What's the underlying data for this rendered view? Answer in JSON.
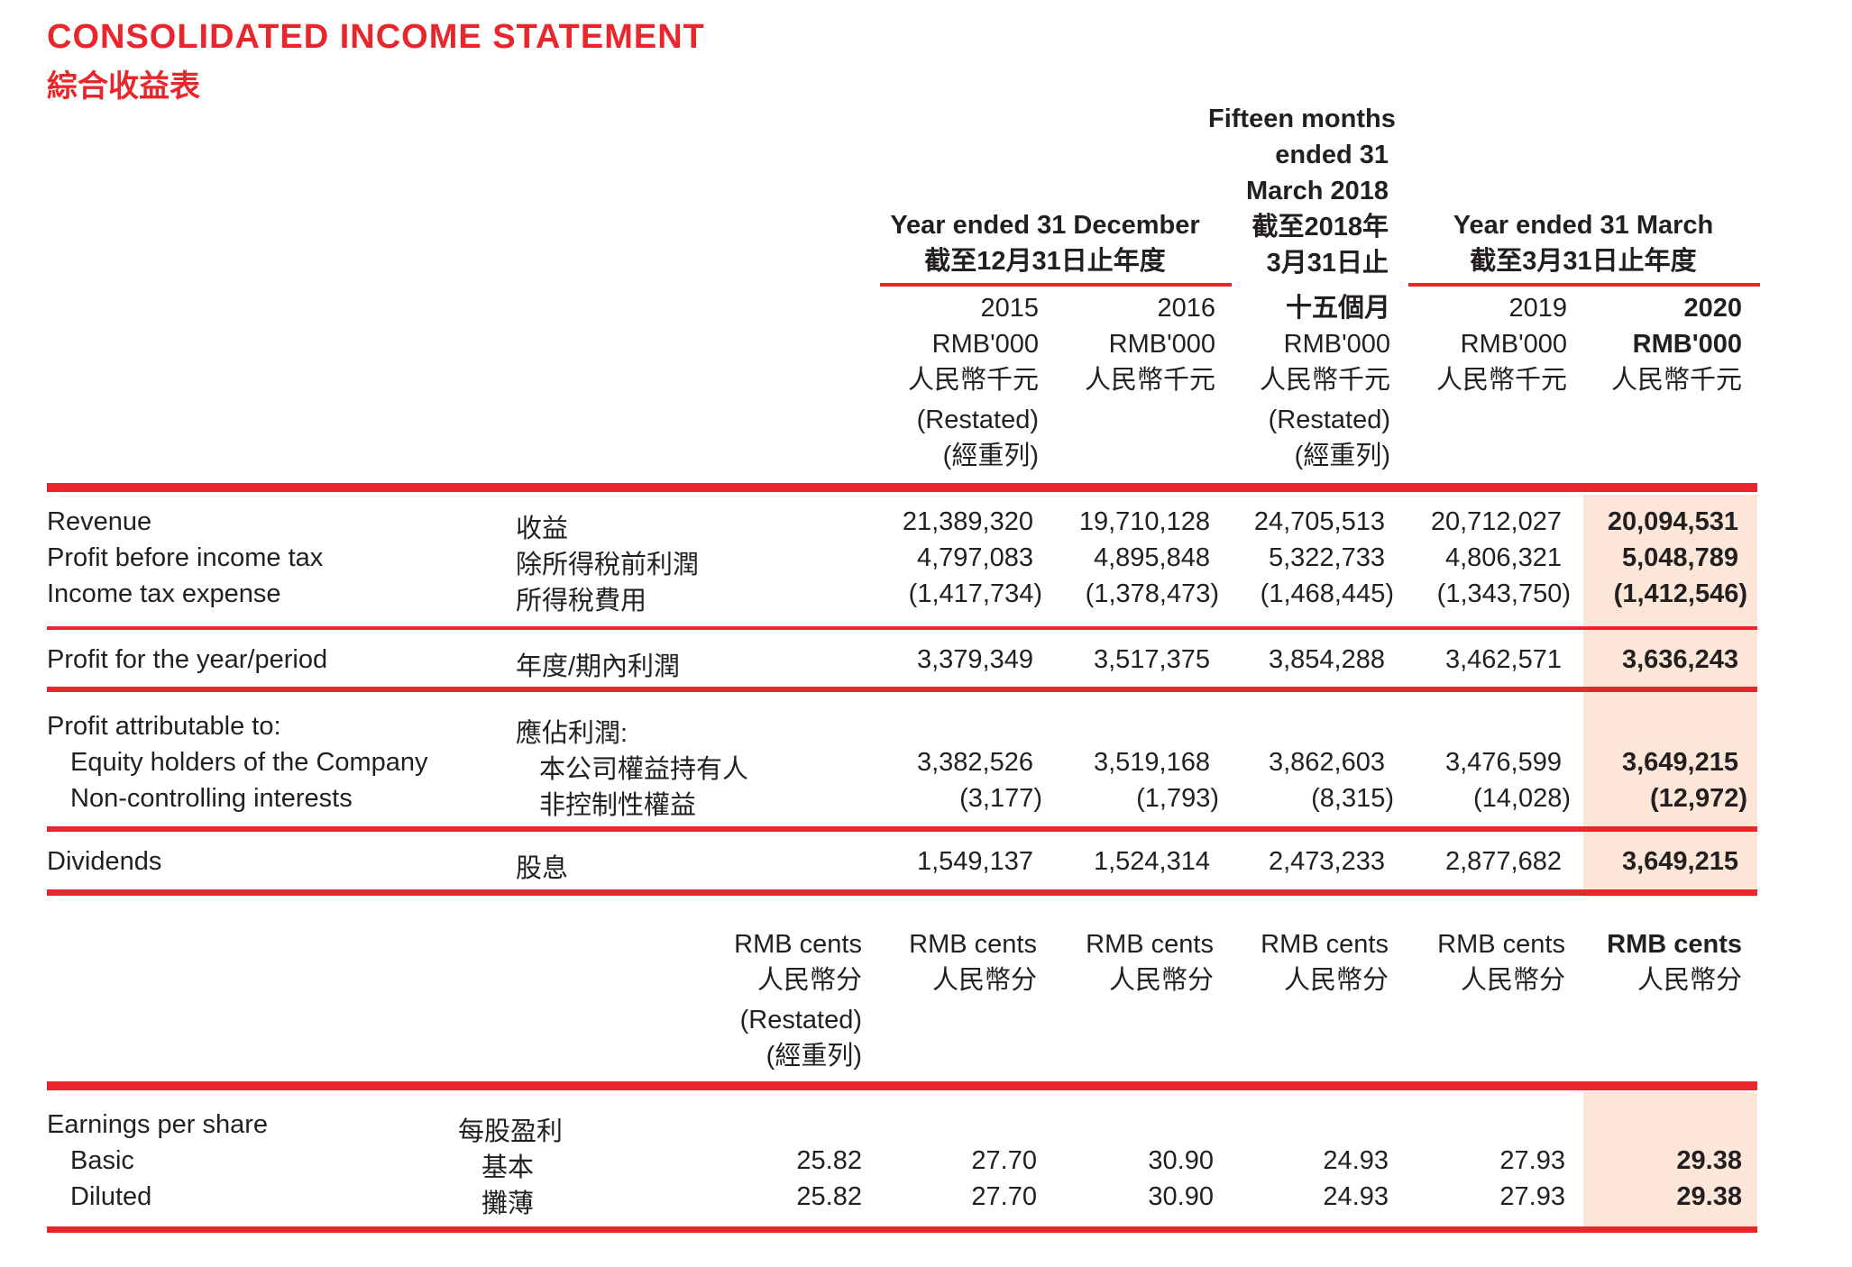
{
  "title": {
    "en": "CONSOLIDATED INCOME STATEMENT",
    "zh": "綜合收益表"
  },
  "headers": {
    "group_dec": {
      "en": "Year ended 31 December",
      "zh": "截至12月31日止年度"
    },
    "group_fifteen": {
      "en1": "Fifteen months",
      "en2": "ended 31",
      "en3": "March 2018",
      "zh1": "截至2018年",
      "zh2": "3月31日止",
      "zh3": "十五個月"
    },
    "group_mar": {
      "en": "Year ended 31 March",
      "zh": "截至3月31日止年度"
    },
    "cols": [
      {
        "year": "2015",
        "unit": "RMB'000",
        "unit_zh": "人民幣千元",
        "note": "(Restated)",
        "note_zh": "(經重列)"
      },
      {
        "year": "2016",
        "unit": "RMB'000",
        "unit_zh": "人民幣千元",
        "note": "",
        "note_zh": ""
      },
      {
        "year": "",
        "unit": "RMB'000",
        "unit_zh": "人民幣千元",
        "note": "(Restated)",
        "note_zh": "(經重列)"
      },
      {
        "year": "2019",
        "unit": "RMB'000",
        "unit_zh": "人民幣千元",
        "note": "",
        "note_zh": ""
      },
      {
        "year": "2020",
        "unit": "RMB'000",
        "unit_zh": "人民幣千元",
        "note": "",
        "note_zh": ""
      }
    ]
  },
  "rows": {
    "revenue": {
      "en": "Revenue",
      "zh": "收益",
      "values": [
        "21,389,320",
        "19,710,128",
        "24,705,513",
        "20,712,027",
        "20,094,531"
      ]
    },
    "pbt": {
      "en": "Profit before income tax",
      "zh": "除所得稅前利潤",
      "values": [
        "4,797,083",
        "4,895,848",
        "5,322,733",
        "4,806,321",
        "5,048,789"
      ]
    },
    "tax": {
      "en": "Income tax expense",
      "zh": "所得稅費用",
      "values": [
        "(1,417,734)",
        "(1,378,473)",
        "(1,468,445)",
        "(1,343,750)",
        "(1,412,546)"
      ]
    },
    "profit": {
      "en": "Profit for the year/period",
      "zh": "年度/期內利潤",
      "values": [
        "3,379,349",
        "3,517,375",
        "3,854,288",
        "3,462,571",
        "3,636,243"
      ]
    },
    "attrib": {
      "en": "Profit attributable to:",
      "zh": "應佔利潤:"
    },
    "equity": {
      "en": "Equity holders of the Company",
      "zh": "本公司權益持有人",
      "values": [
        "3,382,526",
        "3,519,168",
        "3,862,603",
        "3,476,599",
        "3,649,215"
      ]
    },
    "nci": {
      "en": "Non-controlling interests",
      "zh": "非控制性權益",
      "values": [
        "(3,177)",
        "(1,793)",
        "(8,315)",
        "(14,028)",
        "(12,972)"
      ]
    },
    "dividends": {
      "en": "Dividends",
      "zh": "股息",
      "values": [
        "1,549,137",
        "1,524,314",
        "2,473,233",
        "2,877,682",
        "3,649,215"
      ]
    }
  },
  "eps_headers": [
    {
      "unit": "RMB cents",
      "unit_zh": "人民幣分",
      "note": "(Restated)",
      "note_zh": "(經重列)"
    },
    {
      "unit": "RMB cents",
      "unit_zh": "人民幣分"
    },
    {
      "unit": "RMB cents",
      "unit_zh": "人民幣分"
    },
    {
      "unit": "RMB cents",
      "unit_zh": "人民幣分"
    },
    {
      "unit": "RMB cents",
      "unit_zh": "人民幣分"
    },
    {
      "unit": "RMB cents",
      "unit_zh": "人民幣分"
    }
  ],
  "eps": {
    "label": {
      "en": "Earnings per share",
      "zh": "每股盈利"
    },
    "basic": {
      "en": "Basic",
      "zh": "基本",
      "values": [
        "25.82",
        "27.70",
        "30.90",
        "24.93",
        "27.93",
        "29.38"
      ]
    },
    "diluted": {
      "en": "Diluted",
      "zh": "攤薄",
      "values": [
        "25.82",
        "27.70",
        "30.90",
        "24.93",
        "27.93",
        "29.38"
      ]
    }
  },
  "colors": {
    "accent": "#e8262b",
    "highlight": "#fce6d8",
    "text": "#231f20"
  }
}
